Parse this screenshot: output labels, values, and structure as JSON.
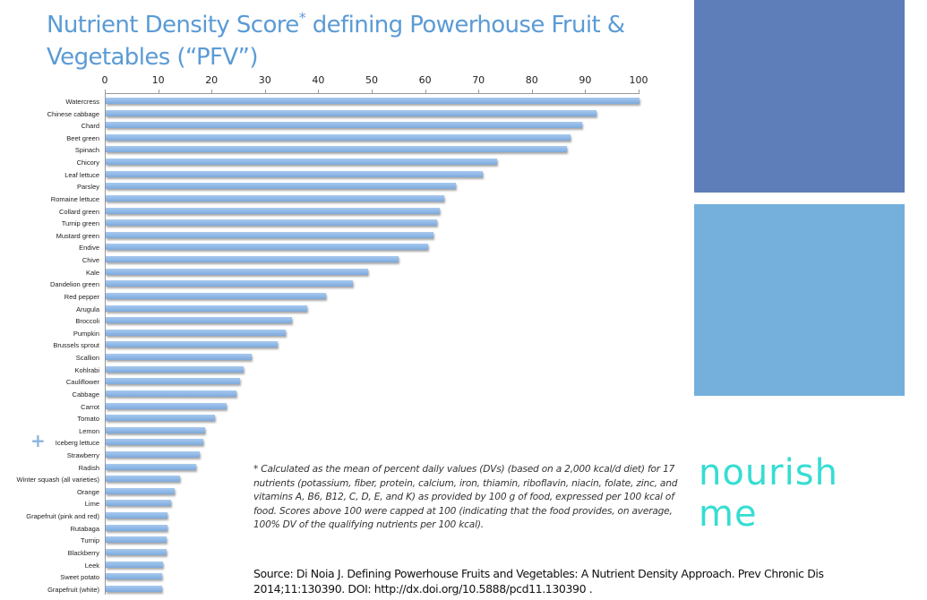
{
  "title": "Nutrient Density Score",
  "title_asterisk": "*",
  "title_rest": " defining Powerhouse Fruit & Vegetables (“PFV”)",
  "footnote": "* Calculated as the mean of percent daily values (DVs) (based on a 2,000 kcal/d diet) for 17 nutrients (potassium, fiber, protein, calcium, iron, thiamin, riboflavin, niacin, folate, zinc, and vitamins A, B6, B12, C, D, E, and K) as provided by 100 g of food, expressed per 100 kcal of food. Scores above 100 were capped at 100 (indicating that the food provides, on average, 100% DV of the qualifying nutrients per 100 kcal).",
  "source": "Source: Di Noia J. Defining Powerhouse Fruits and Vegetables: A Nutrient Density Approach. Prev Chronic Dis 2014;11:130390. DOI: http://dx.doi.org/10.5888/pcd11.130390 .",
  "brand": {
    "line1": "nourish",
    "line2": "me",
    "color": "#36ddd2"
  },
  "decor": {
    "plus_icon": "+",
    "block_dark_color": "#5e7eb9",
    "block_light_color": "#75afdb"
  },
  "chart_data": {
    "type": "bar",
    "orientation": "horizontal",
    "title": "Nutrient Density Score* defining Powerhouse Fruit & Vegetables (“PFV”)",
    "xlabel": "",
    "ylabel": "",
    "xlim": [
      0,
      100
    ],
    "xticks": [
      0,
      10,
      20,
      30,
      40,
      50,
      60,
      70,
      80,
      90,
      100
    ],
    "axis_position": "top",
    "grid": false,
    "legend": null,
    "bar_color": "#8db7e6",
    "categories": [
      "Watercress",
      "Chinese cabbage",
      "Chard",
      "Beet green",
      "Spinach",
      "Chicory",
      "Leaf lettuce",
      "Parsley",
      "Romaine lettuce",
      "Collard green",
      "Turnip green",
      "Mustard green",
      "Endive",
      "Chive",
      "Kale",
      "Dandelion green",
      "Red pepper",
      "Arugula",
      "Broccoli",
      "Pumpkin",
      "Brussels sprout",
      "Scallion",
      "Kohlrabi",
      "Cauliflower",
      "Cabbage",
      "Carrot",
      "Tomato",
      "Lemon",
      "Iceberg lettuce",
      "Strawberry",
      "Radish",
      "Winter squash (all varieties)",
      "Orange",
      "Lime",
      "Grapefruit (pink and red)",
      "Rutabaga",
      "Turnip",
      "Blackberry",
      "Leek",
      "Sweet potato",
      "Grapefruit (white)"
    ],
    "values": [
      100,
      92.0,
      89.3,
      87.1,
      86.4,
      73.4,
      70.7,
      65.6,
      63.5,
      62.5,
      62.1,
      61.4,
      60.4,
      54.8,
      49.1,
      46.3,
      41.3,
      37.7,
      34.9,
      33.8,
      32.2,
      27.4,
      25.9,
      25.1,
      24.5,
      22.6,
      20.4,
      18.7,
      18.3,
      17.6,
      16.9,
      13.9,
      12.9,
      12.2,
      11.6,
      11.6,
      11.4,
      11.4,
      10.7,
      10.5,
      10.5
    ]
  }
}
